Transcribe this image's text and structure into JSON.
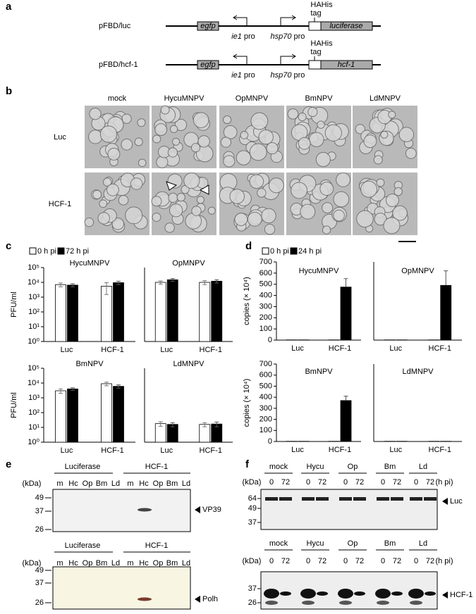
{
  "panel_labels": [
    "a",
    "b",
    "c",
    "d",
    "e",
    "f"
  ],
  "constructs": [
    {
      "name": "pFBD/luc",
      "gene1": "egfp",
      "promoters": [
        [
          "ie1",
          "pro"
        ],
        [
          "hsp70",
          "pro"
        ]
      ],
      "tag": [
        "HAHis",
        "tag"
      ],
      "gene2": "luciferase"
    },
    {
      "name": "pFBD/hcf-1",
      "gene1": "egfp",
      "promoters": [
        [
          "ie1",
          "pro"
        ],
        [
          "hsp70",
          "pro"
        ]
      ],
      "tag": [
        "HAHis",
        "tag"
      ],
      "gene2": "hcf-1"
    }
  ],
  "micrographs": {
    "columns": [
      "mock",
      "HycuMNPV",
      "OpMNPV",
      "BmNPV",
      "LdMNPV"
    ],
    "rows": [
      "Luc",
      "HCF-1"
    ]
  },
  "chart_data": [
    {
      "type": "bar",
      "title": "HycuMNPV",
      "y_label": "PFU/ml",
      "log_scale": true,
      "categories": [
        "Luc",
        "HCF-1"
      ],
      "series": [
        {
          "name": "0 h pi",
          "color": "#ffffff",
          "values": [
            7000,
            5500
          ],
          "errors": [
            2000,
            4000
          ]
        },
        {
          "name": "72 h pi",
          "color": "#000000",
          "values": [
            6500,
            9500
          ],
          "errors": [
            1500,
            2500
          ]
        }
      ],
      "ylim": [
        1,
        100000
      ],
      "yticks": [
        {
          "value": 1,
          "label": "10⁰"
        },
        {
          "value": 10,
          "label": "10¹"
        },
        {
          "value": 100,
          "label": "10²"
        },
        {
          "value": 1000,
          "label": "10³"
        },
        {
          "value": 10000,
          "label": "10⁴"
        },
        {
          "value": 100000,
          "label": "10⁵"
        }
      ]
    },
    {
      "type": "bar",
      "title": "OpMNPV",
      "log_scale": true,
      "categories": [
        "Luc",
        "HCF-1"
      ],
      "series": [
        {
          "name": "0 h pi",
          "color": "#ffffff",
          "values": [
            10000,
            10000
          ],
          "errors": [
            2500,
            3000
          ]
        },
        {
          "name": "72 h pi",
          "color": "#000000",
          "values": [
            15000,
            12000
          ],
          "errors": [
            3000,
            3000
          ]
        }
      ],
      "ylim": [
        1,
        100000
      ]
    },
    {
      "type": "bar",
      "title": "BmNPV",
      "y_label": "PFU/ml",
      "log_scale": true,
      "categories": [
        "Luc",
        "HCF-1"
      ],
      "series": [
        {
          "name": "0 h pi",
          "color": "#ffffff",
          "values": [
            3000,
            9000
          ],
          "errors": [
            1000,
            2500
          ]
        },
        {
          "name": "72 h pi",
          "color": "#000000",
          "values": [
            4000,
            6000
          ],
          "errors": [
            800,
            1500
          ]
        }
      ],
      "ylim": [
        1,
        100000
      ],
      "yticks": [
        {
          "value": 1,
          "label": "10⁰"
        },
        {
          "value": 10,
          "label": "10¹"
        },
        {
          "value": 100,
          "label": "10²"
        },
        {
          "value": 1000,
          "label": "10³"
        },
        {
          "value": 10000,
          "label": "10⁴"
        },
        {
          "value": 100000,
          "label": "10⁵"
        }
      ]
    },
    {
      "type": "bar",
      "title": "LdMNPV",
      "log_scale": true,
      "categories": [
        "Luc",
        "HCF-1"
      ],
      "series": [
        {
          "name": "0 h pi",
          "color": "#ffffff",
          "values": [
            18,
            16
          ],
          "errors": [
            6,
            5
          ]
        },
        {
          "name": "72 h pi",
          "color": "#000000",
          "values": [
            16,
            17
          ],
          "errors": [
            5,
            6
          ]
        }
      ],
      "ylim": [
        1,
        100000
      ]
    },
    {
      "type": "bar",
      "title": "HycuMNPV",
      "y_label": "copies (× 10⁴)",
      "log_scale": false,
      "categories": [
        "Luc",
        "HCF-1"
      ],
      "series": [
        {
          "name": "0 h pi",
          "color": "#ffffff",
          "values": [
            2,
            2
          ]
        },
        {
          "name": "24 h pi",
          "color": "#000000",
          "values": [
            2,
            475
          ],
          "errors": [
            null,
            75
          ]
        }
      ],
      "ylim": [
        0,
        700
      ],
      "yticks": [
        0,
        100,
        200,
        300,
        400,
        500,
        600,
        700
      ]
    },
    {
      "type": "bar",
      "title": "OpMNPV",
      "log_scale": false,
      "categories": [
        "Luc",
        "HCF-1"
      ],
      "series": [
        {
          "name": "0 h pi",
          "color": "#ffffff",
          "values": [
            2,
            2
          ]
        },
        {
          "name": "24 h pi",
          "color": "#000000",
          "values": [
            2,
            490
          ],
          "errors": [
            null,
            130
          ]
        }
      ],
      "ylim": [
        0,
        700
      ]
    },
    {
      "type": "bar",
      "title": "BmNPV",
      "y_label": "copies (× 10⁴)",
      "log_scale": false,
      "categories": [
        "Luc",
        "HCF-1"
      ],
      "series": [
        {
          "name": "0 h pi",
          "color": "#ffffff",
          "values": [
            2,
            2
          ]
        },
        {
          "name": "24 h pi",
          "color": "#000000",
          "values": [
            2,
            370
          ],
          "errors": [
            null,
            40
          ]
        }
      ],
      "ylim": [
        0,
        700
      ],
      "yticks": [
        0,
        100,
        200,
        300,
        400,
        500,
        600,
        700
      ]
    },
    {
      "type": "bar",
      "title": "LdMNPV",
      "log_scale": false,
      "categories": [
        "Luc",
        "HCF-1"
      ],
      "series": [
        {
          "name": "0 h pi",
          "color": "#ffffff",
          "values": [
            2,
            2
          ]
        },
        {
          "name": "24 h pi",
          "color": "#000000",
          "values": [
            2,
            2
          ]
        }
      ],
      "ylim": [
        0,
        700
      ]
    }
  ],
  "blots_e": [
    {
      "headers": [
        "Luciferase",
        "HCF-1"
      ],
      "lanes": [
        "m",
        "Hc",
        "Op",
        "Bm",
        "Ld",
        "m",
        "Hc",
        "Op",
        "Bm",
        "Ld"
      ],
      "unit": "(kDa)",
      "markers": [
        "49",
        "37",
        "26"
      ],
      "target": "VP39"
    },
    {
      "headers": [
        "Luciferase",
        "HCF-1"
      ],
      "lanes": [
        "m",
        "Hc",
        "Op",
        "Bm",
        "Ld",
        "m",
        "Hc",
        "Op",
        "Bm",
        "Ld"
      ],
      "unit": "(kDa)",
      "markers": [
        "49",
        "37",
        "26"
      ],
      "target": "Polh"
    }
  ],
  "blots_f": [
    {
      "groups": [
        "mock",
        "Hycu",
        "Op",
        "Bm",
        "Ld"
      ],
      "lanes": [
        "0",
        "72",
        "0",
        "72",
        "0",
        "72",
        "0",
        "72",
        "0",
        "72"
      ],
      "unit": "(kDa)",
      "time_unit": "(h pi)",
      "markers": [
        "64",
        "49",
        "37"
      ],
      "target": "Luc"
    },
    {
      "groups": [
        "mock",
        "Hycu",
        "Op",
        "Bm",
        "Ld"
      ],
      "lanes": [
        "0",
        "72",
        "0",
        "72",
        "0",
        "72",
        "0",
        "72",
        "0",
        "72"
      ],
      "unit": "(kDa)",
      "time_unit": "(h pi)",
      "markers": [
        "37",
        "26"
      ],
      "target": "HCF-1"
    }
  ]
}
